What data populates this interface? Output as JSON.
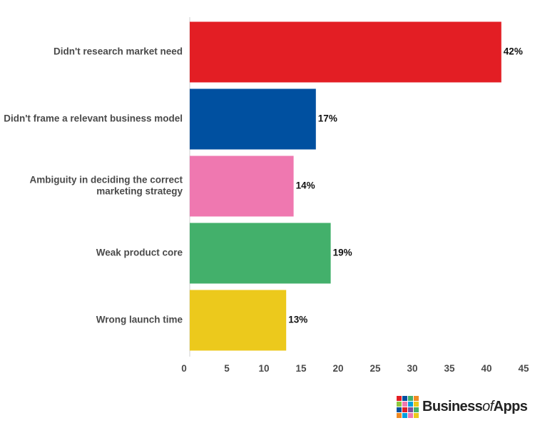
{
  "chart_data": {
    "type": "bar",
    "orientation": "horizontal",
    "categories": [
      "Didn't research market need",
      "Didn't frame a relevant business model",
      "Ambiguity in deciding the correct marketing strategy",
      "Weak product core",
      "Wrong launch time"
    ],
    "category_lines": [
      [
        "Didn't research market need"
      ],
      [
        "Didn't frame a relevant business model"
      ],
      [
        "Ambiguity in deciding the correct",
        "marketing strategy"
      ],
      [
        "Weak product core"
      ],
      [
        "Wrong launch time"
      ]
    ],
    "values": [
      42,
      17,
      14,
      19,
      13
    ],
    "data_labels": [
      "42%",
      "17%",
      "14%",
      "19%",
      "13%"
    ],
    "colors": [
      "#e31e24",
      "#0050a0",
      "#ef78b0",
      "#43b06b",
      "#ecc91c"
    ],
    "x_ticks": [
      0,
      5,
      10,
      15,
      20,
      25,
      30,
      35,
      40,
      45
    ],
    "xlim": [
      0,
      45
    ],
    "grid": false,
    "legend": "none"
  },
  "logo": {
    "text_main": "Business",
    "text_of": "of",
    "text_end": "Apps",
    "grid_colors": [
      "#e31e24",
      "#0050a0",
      "#43b06b",
      "#f08a24",
      "#8dc63f",
      "#ef78b0",
      "#00a0e0",
      "#ecc91c",
      "#0050a0",
      "#e31e24",
      "#7a4fa0",
      "#43b06b",
      "#f08a24",
      "#00a0e0",
      "#ef78b0",
      "#ecc91c"
    ]
  }
}
